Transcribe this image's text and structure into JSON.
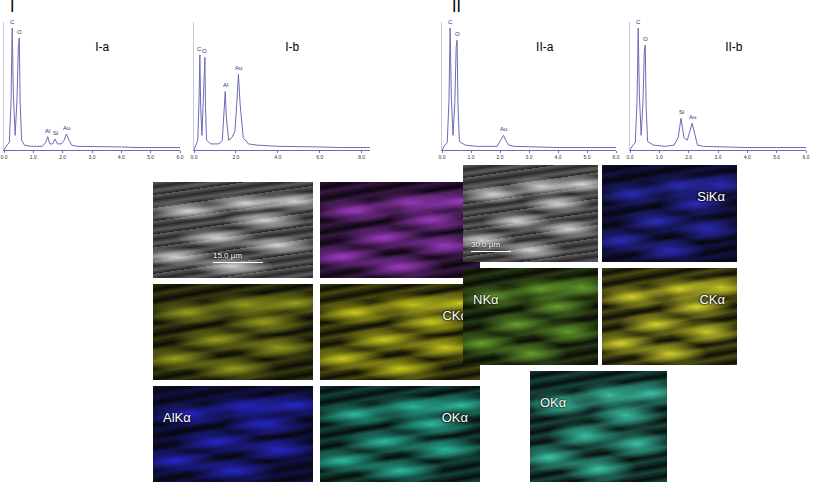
{
  "chart_data": [
    {
      "type": "line",
      "title": "I-a",
      "color": "#6b6bb8",
      "tick_labels": "x",
      "grid": false,
      "x": [
        0,
        0.1,
        0.18,
        0.24,
        0.28,
        0.32,
        0.38,
        0.44,
        0.49,
        0.52,
        0.55,
        0.6,
        0.7,
        0.9,
        1.1,
        1.3,
        1.42,
        1.49,
        1.56,
        1.66,
        1.74,
        1.82,
        1.95,
        2.05,
        2.12,
        2.2,
        2.3,
        2.5,
        3,
        3.5,
        4,
        4.5,
        5,
        5.5,
        6
      ],
      "values": [
        0,
        4,
        6,
        40,
        100,
        45,
        12,
        40,
        85,
        92,
        40,
        8,
        4,
        3,
        3,
        3,
        6,
        11,
        5,
        5,
        9,
        5,
        5,
        8,
        13,
        9,
        4,
        3,
        3,
        2.5,
        2.5,
        2,
        2,
        2,
        2
      ],
      "xlim": [
        0,
        6
      ],
      "ylim": [
        0,
        105
      ],
      "xticks": [
        {
          "value": 0,
          "label": "0.0"
        },
        {
          "value": 1,
          "label": "1.0"
        },
        {
          "value": 2,
          "label": "2.0"
        },
        {
          "value": 3,
          "label": "3.0"
        },
        {
          "value": 4,
          "label": "4.0"
        },
        {
          "value": 5,
          "label": "5.0"
        },
        {
          "value": 6,
          "label": "6.0"
        }
      ],
      "annotations": [
        {
          "x": 0.28,
          "y": 100,
          "text": "C"
        },
        {
          "x": 0.52,
          "y": 92,
          "text": "O"
        },
        {
          "x": 1.49,
          "y": 11,
          "text": "Al"
        },
        {
          "x": 1.74,
          "y": 9,
          "text": "Si"
        },
        {
          "x": 2.12,
          "y": 13,
          "text": "Au"
        }
      ]
    },
    {
      "type": "line",
      "title": "I-b",
      "color": "#6b6bb8",
      "tick_labels": "x",
      "grid": false,
      "x": [
        0,
        0.1,
        0.18,
        0.24,
        0.28,
        0.32,
        0.38,
        0.44,
        0.49,
        0.52,
        0.55,
        0.6,
        0.8,
        1.0,
        1.2,
        1.35,
        1.44,
        1.49,
        1.54,
        1.65,
        1.8,
        1.95,
        2.05,
        2.12,
        2.2,
        2.35,
        2.6,
        3,
        4,
        5,
        6,
        7,
        8,
        8.4
      ],
      "values": [
        0,
        5,
        8,
        40,
        78,
        35,
        12,
        40,
        72,
        76,
        35,
        8,
        5,
        5,
        5,
        8,
        30,
        48,
        28,
        8,
        10,
        15,
        40,
        62,
        38,
        10,
        5,
        4,
        3,
        3,
        2.5,
        2,
        2,
        2
      ],
      "xlim": [
        0,
        8.4
      ],
      "ylim": [
        0,
        105
      ],
      "xticks": [
        {
          "value": 0,
          "label": "0.0"
        },
        {
          "value": 2,
          "label": "2.0"
        },
        {
          "value": 4,
          "label": "4.0"
        },
        {
          "value": 6,
          "label": "6.0"
        },
        {
          "value": 8,
          "label": "8.0"
        }
      ],
      "annotations": [
        {
          "x": 0.28,
          "y": 78,
          "text": "C"
        },
        {
          "x": 0.52,
          "y": 76,
          "text": "O"
        },
        {
          "x": 1.49,
          "y": 48,
          "text": "Al"
        },
        {
          "x": 2.12,
          "y": 62,
          "text": "Au"
        }
      ]
    },
    {
      "type": "line",
      "title": "II-a",
      "color": "#6b6bb8",
      "tick_labels": "x",
      "grid": false,
      "x": [
        0,
        0.1,
        0.18,
        0.24,
        0.28,
        0.32,
        0.38,
        0.44,
        0.49,
        0.52,
        0.55,
        0.6,
        0.8,
        1.2,
        1.6,
        1.9,
        2.02,
        2.12,
        2.2,
        2.3,
        2.5,
        3,
        4,
        5,
        6
      ],
      "values": [
        0,
        4,
        6,
        40,
        100,
        45,
        12,
        38,
        85,
        90,
        38,
        7,
        4,
        3,
        3,
        3,
        8,
        12,
        8,
        4,
        3,
        2.5,
        2,
        2,
        2
      ],
      "xlim": [
        0,
        6
      ],
      "ylim": [
        0,
        105
      ],
      "xticks": [
        {
          "value": 0,
          "label": "0.0"
        },
        {
          "value": 1,
          "label": "1.0"
        },
        {
          "value": 2,
          "label": "2.0"
        },
        {
          "value": 3,
          "label": "3.0"
        },
        {
          "value": 4,
          "label": "4.0"
        },
        {
          "value": 5,
          "label": "5.0"
        },
        {
          "value": 6,
          "label": "6.0"
        }
      ],
      "annotations": [
        {
          "x": 0.28,
          "y": 100,
          "text": "C"
        },
        {
          "x": 0.52,
          "y": 90,
          "text": "O"
        },
        {
          "x": 2.12,
          "y": 12,
          "text": "Au"
        }
      ]
    },
    {
      "type": "line",
      "title": "II-b",
      "color": "#6b6bb8",
      "tick_labels": "x",
      "grid": false,
      "x": [
        0,
        0.1,
        0.18,
        0.24,
        0.28,
        0.32,
        0.38,
        0.44,
        0.49,
        0.52,
        0.55,
        0.6,
        0.8,
        1.2,
        1.5,
        1.64,
        1.74,
        1.84,
        1.95,
        2.04,
        2.12,
        2.2,
        2.3,
        2.5,
        3,
        4,
        5,
        6
      ],
      "values": [
        0,
        4,
        6,
        40,
        100,
        45,
        12,
        38,
        82,
        86,
        36,
        7,
        4,
        3,
        4,
        10,
        26,
        10,
        8,
        16,
        22,
        14,
        4,
        3,
        2.5,
        2,
        2,
        2
      ],
      "xlim": [
        0,
        6
      ],
      "ylim": [
        0,
        105
      ],
      "xticks": [
        {
          "value": 0,
          "label": "0.0"
        },
        {
          "value": 1,
          "label": "1.0"
        },
        {
          "value": 2,
          "label": "2.0"
        },
        {
          "value": 3,
          "label": "3.0"
        },
        {
          "value": 4,
          "label": "4.0"
        },
        {
          "value": 5,
          "label": "5.0"
        },
        {
          "value": 6,
          "label": "6.0"
        }
      ],
      "annotations": [
        {
          "x": 0.28,
          "y": 100,
          "text": "C"
        },
        {
          "x": 0.52,
          "y": 86,
          "text": "O"
        },
        {
          "x": 1.74,
          "y": 26,
          "text": "Si"
        },
        {
          "x": 2.12,
          "y": 22,
          "text": "Au"
        }
      ]
    }
  ],
  "figure": {
    "panels": [
      {
        "label": "I",
        "maps": [
          {
            "type": "sem",
            "scale_bar": "15.0 µm"
          },
          {
            "type": "map",
            "color": "#b040d8"
          },
          {
            "type": "map",
            "color": "#a8b020"
          },
          {
            "type": "map",
            "label": "CKα",
            "color": "#e0e020"
          },
          {
            "type": "map",
            "label": "AlKα",
            "color": "#2a2ae0"
          },
          {
            "type": "map",
            "label": "OKα",
            "color": "#30d0b0"
          }
        ]
      },
      {
        "label": "II",
        "maps": [
          {
            "type": "sem",
            "scale_bar": "30.0 µm"
          },
          {
            "type": "map",
            "label": "SiKα",
            "color": "#3030d0"
          },
          {
            "type": "map",
            "label": "NKα",
            "color": "#70b030"
          },
          {
            "type": "map",
            "label": "CKα",
            "color": "#e8e830"
          },
          {
            "type": "map",
            "label": "OKα",
            "color": "#40d8b8"
          }
        ]
      }
    ]
  }
}
